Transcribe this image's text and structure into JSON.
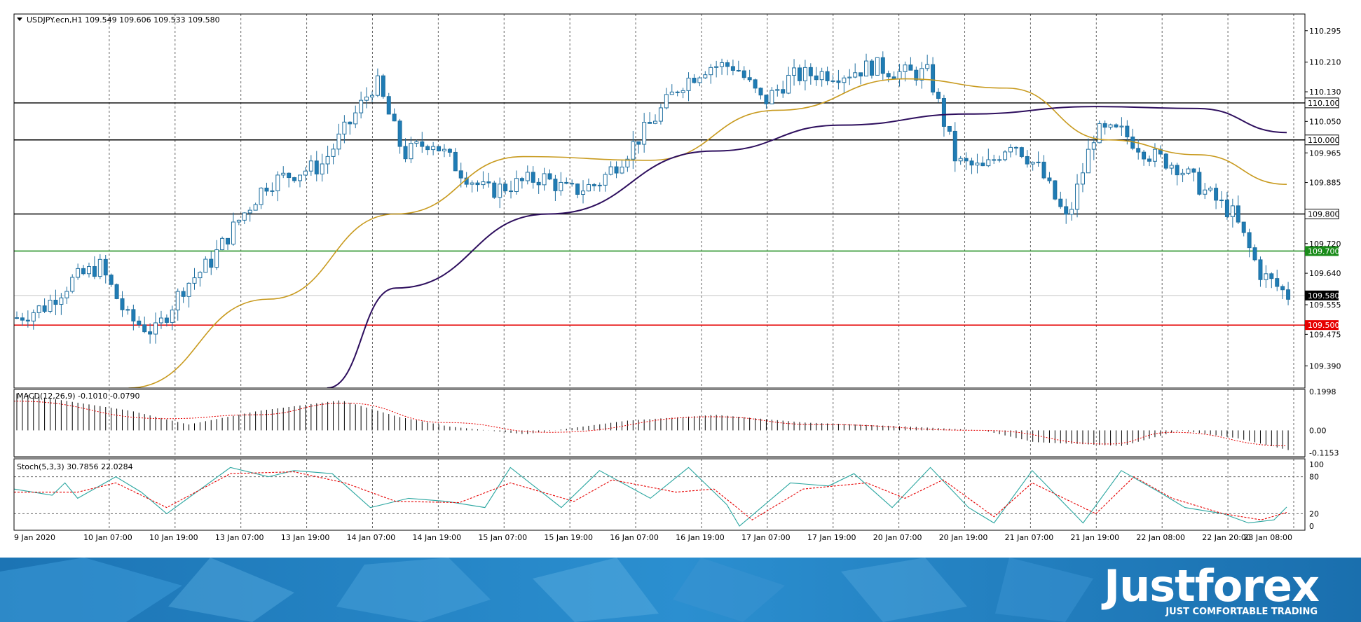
{
  "chart_data": [
    {
      "type": "candlestick",
      "title": "USDJPY.ecn,H1  109.549 109.606 109.533 109.580",
      "ylim": [
        109.33,
        110.34
      ],
      "y_ticks": [
        "110.295",
        "110.210",
        "110.130",
        "110.050",
        "109.965",
        "109.885",
        "109.720",
        "109.640",
        "109.555",
        "109.475",
        "109.390"
      ],
      "x_ticks": [
        "9 Jan 2020",
        "10 Jan 07:00",
        "10 Jan 19:00",
        "13 Jan 07:00",
        "13 Jan 19:00",
        "14 Jan 07:00",
        "14 Jan 19:00",
        "15 Jan 07:00",
        "15 Jan 19:00",
        "16 Jan 07:00",
        "16 Jan 19:00",
        "17 Jan 07:00",
        "17 Jan 19:00",
        "20 Jan 07:00",
        "20 Jan 19:00",
        "21 Jan 07:00",
        "21 Jan 19:00",
        "22 Jan 08:00",
        "22 Jan 20:00",
        "23 Jan 08:00"
      ],
      "close_anchors": [
        109.52,
        109.55,
        109.62,
        109.66,
        109.52,
        109.48,
        109.6,
        109.67,
        109.78,
        109.88,
        109.91,
        109.93,
        110.04,
        110.16,
        109.96,
        110.0,
        109.92,
        109.86,
        109.88,
        109.9,
        109.86,
        109.88,
        109.96,
        110.05,
        110.15,
        110.2,
        110.2,
        110.1,
        110.17,
        110.18,
        110.18,
        110.2,
        110.18,
        110.18,
        109.94,
        109.92,
        110.0,
        109.92,
        109.78,
        110.02,
        110.02,
        109.96,
        109.93,
        109.86,
        109.8,
        109.64,
        109.58
      ],
      "horizontal_levels": [
        {
          "label": "110.100",
          "value": 110.1,
          "color": "#000000"
        },
        {
          "label": "110.000",
          "value": 110.0,
          "color": "#000000"
        },
        {
          "label": "109.800",
          "value": 109.8,
          "color": "#000000"
        },
        {
          "label": "109.700",
          "value": 109.7,
          "color": "#1a8c1a"
        },
        {
          "label": "109.580",
          "value": 109.58,
          "color": "#c8c8c8"
        },
        {
          "label": "109.500",
          "value": 109.5,
          "color": "#e60000"
        }
      ],
      "ma_fast": {
        "color": "#c89a1e",
        "anchors": [
          [
            0.09,
            109.33
          ],
          [
            0.2,
            109.57
          ],
          [
            0.3,
            109.8
          ],
          [
            0.4,
            109.955
          ],
          [
            0.5,
            109.945
          ],
          [
            0.6,
            110.08
          ],
          [
            0.7,
            110.165
          ],
          [
            0.78,
            110.14
          ],
          [
            0.86,
            110.0
          ],
          [
            0.93,
            109.96
          ],
          [
            1.0,
            109.88
          ]
        ]
      },
      "ma_slow": {
        "color": "#2e0f5e",
        "anchors": [
          [
            0.246,
            109.33
          ],
          [
            0.3,
            109.6
          ],
          [
            0.42,
            109.8
          ],
          [
            0.55,
            109.97
          ],
          [
            0.65,
            110.04
          ],
          [
            0.75,
            110.07
          ],
          [
            0.85,
            110.09
          ],
          [
            0.93,
            110.085
          ],
          [
            1.0,
            110.02
          ]
        ]
      }
    },
    {
      "type": "bar",
      "title": "MACD(12,26,9) -0.1010 -0.0790",
      "y_ticks": [
        "0.1998",
        "0.00",
        "-0.1153"
      ],
      "ylim": [
        -0.135,
        0.21
      ],
      "hist_anchors": [
        [
          0.0,
          0.19
        ],
        [
          0.09,
          0.1
        ],
        [
          0.135,
          0.03
        ],
        [
          0.19,
          0.1
        ],
        [
          0.255,
          0.155
        ],
        [
          0.3,
          0.07
        ],
        [
          0.34,
          0.02
        ],
        [
          0.4,
          -0.02
        ],
        [
          0.48,
          0.05
        ],
        [
          0.55,
          0.08
        ],
        [
          0.62,
          0.04
        ],
        [
          0.7,
          0.02
        ],
        [
          0.76,
          0.0
        ],
        [
          0.8,
          -0.06
        ],
        [
          0.87,
          -0.08
        ],
        [
          0.915,
          0.0
        ],
        [
          0.96,
          -0.04
        ],
        [
          1.0,
          -0.101
        ]
      ],
      "signal_anchors": [
        [
          0.0,
          0.15
        ],
        [
          0.12,
          0.06
        ],
        [
          0.19,
          0.08
        ],
        [
          0.26,
          0.14
        ],
        [
          0.34,
          0.04
        ],
        [
          0.42,
          -0.01
        ],
        [
          0.55,
          0.07
        ],
        [
          0.63,
          0.03
        ],
        [
          0.76,
          0.0
        ],
        [
          0.86,
          -0.07
        ],
        [
          0.91,
          -0.01
        ],
        [
          1.0,
          -0.079
        ]
      ],
      "hist_color": "#000000",
      "signal_color": "#e60000"
    },
    {
      "type": "line",
      "title": "Stoch(5,3,3) 30.7856 22.0284",
      "y_ticks": [
        "100",
        "80",
        "20",
        "0"
      ],
      "ylim": [
        0,
        100
      ],
      "main_color": "#2aa6a0",
      "signal_color": "#e60000",
      "main_anchors": [
        [
          0.0,
          60
        ],
        [
          0.03,
          50
        ],
        [
          0.04,
          70
        ],
        [
          0.05,
          45
        ],
        [
          0.08,
          80
        ],
        [
          0.1,
          55
        ],
        [
          0.12,
          20
        ],
        [
          0.15,
          65
        ],
        [
          0.17,
          95
        ],
        [
          0.2,
          80
        ],
        [
          0.22,
          90
        ],
        [
          0.25,
          85
        ],
        [
          0.28,
          30
        ],
        [
          0.31,
          45
        ],
        [
          0.34,
          40
        ],
        [
          0.37,
          30
        ],
        [
          0.39,
          95
        ],
        [
          0.43,
          30
        ],
        [
          0.46,
          90
        ],
        [
          0.5,
          45
        ],
        [
          0.53,
          95
        ],
        [
          0.56,
          35
        ],
        [
          0.57,
          0
        ],
        [
          0.61,
          70
        ],
        [
          0.64,
          65
        ],
        [
          0.66,
          85
        ],
        [
          0.69,
          30
        ],
        [
          0.72,
          95
        ],
        [
          0.75,
          30
        ],
        [
          0.77,
          5
        ],
        [
          0.8,
          90
        ],
        [
          0.84,
          5
        ],
        [
          0.87,
          90
        ],
        [
          0.9,
          55
        ],
        [
          0.92,
          30
        ],
        [
          0.95,
          20
        ],
        [
          0.97,
          5
        ],
        [
          0.99,
          10
        ],
        [
          1.0,
          30.79
        ]
      ],
      "signal_anchors": [
        [
          0.0,
          55
        ],
        [
          0.05,
          55
        ],
        [
          0.08,
          70
        ],
        [
          0.12,
          30
        ],
        [
          0.17,
          85
        ],
        [
          0.22,
          88
        ],
        [
          0.26,
          70
        ],
        [
          0.3,
          40
        ],
        [
          0.35,
          38
        ],
        [
          0.39,
          70
        ],
        [
          0.44,
          40
        ],
        [
          0.47,
          75
        ],
        [
          0.52,
          55
        ],
        [
          0.55,
          60
        ],
        [
          0.58,
          10
        ],
        [
          0.62,
          60
        ],
        [
          0.67,
          70
        ],
        [
          0.7,
          45
        ],
        [
          0.73,
          75
        ],
        [
          0.77,
          15
        ],
        [
          0.8,
          70
        ],
        [
          0.85,
          20
        ],
        [
          0.88,
          80
        ],
        [
          0.91,
          45
        ],
        [
          0.95,
          20
        ],
        [
          0.98,
          10
        ],
        [
          1.0,
          22.03
        ]
      ]
    }
  ],
  "footer": {
    "brand": "Justforex",
    "tagline": "JUST COMFORTABLE TRADING"
  }
}
